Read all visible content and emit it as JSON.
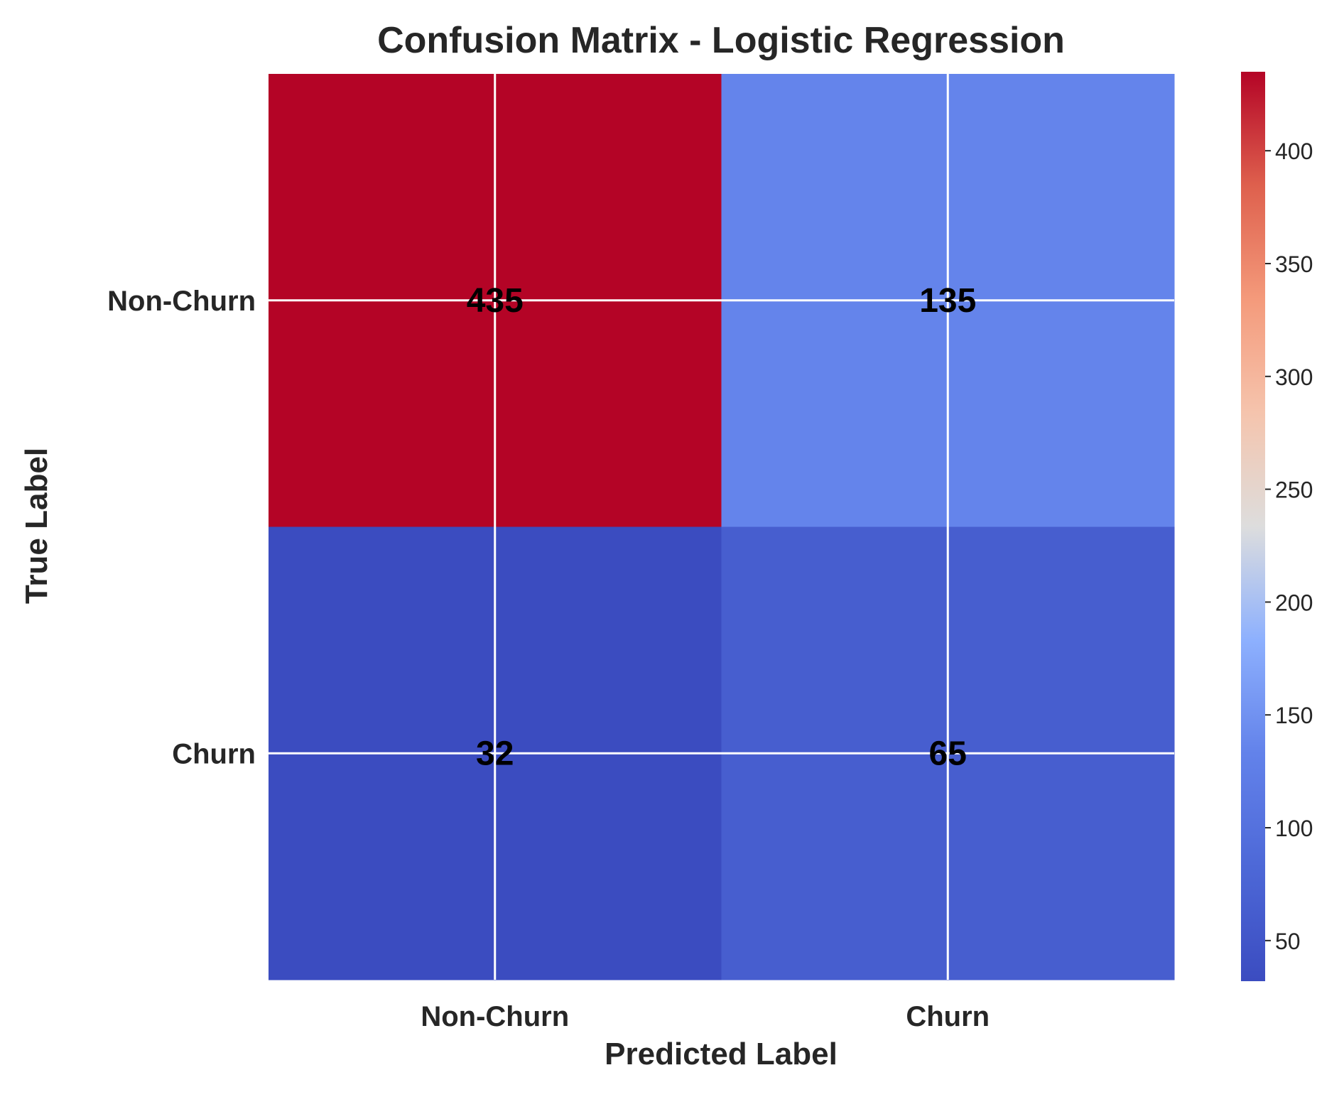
{
  "chart_data": {
    "type": "heatmap",
    "title": "Confusion Matrix - Logistic Regression",
    "xlabel": "Predicted Label",
    "ylabel": "True Label",
    "x_categories": [
      "Non-Churn",
      "Churn"
    ],
    "y_categories": [
      "Non-Churn",
      "Churn"
    ],
    "matrix": [
      [
        435,
        135
      ],
      [
        32,
        65
      ]
    ],
    "colormap": "coolwarm",
    "color_range": [
      32,
      435
    ],
    "colorbar_ticks": [
      50,
      100,
      150,
      200,
      250,
      300,
      350,
      400
    ],
    "grid": true,
    "colors": {
      "low": "#3b4cc0",
      "mid": "#dddddd",
      "high": "#b40426",
      "annotation": "#000000",
      "text": "#262626",
      "grid": "#ffffff"
    }
  }
}
